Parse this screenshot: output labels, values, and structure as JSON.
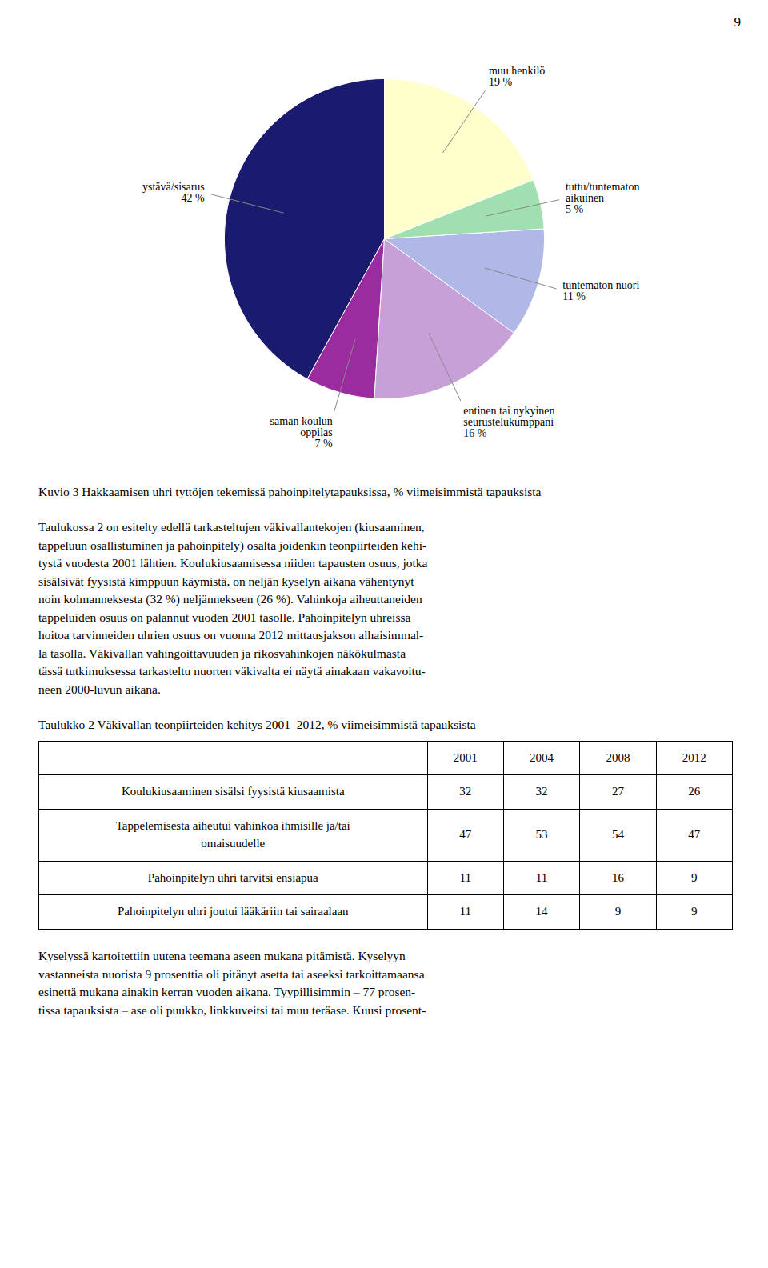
{
  "page_number": 9,
  "chart_data": {
    "type": "pie",
    "title": "Kuvio 3 Hakkaamisen uhri tyttöjen tekemissä pahoinpitelytapauksissa, % viimeisimmistä tapauksista",
    "categories": [
      "ystävä/sisarus",
      "saman koulun\noppilas",
      "entinen tai nykyinen\nseurustelukumppani",
      "tuntematon nuori",
      "tuttu/tuntematon\naikuinen",
      "muu henkilö"
    ],
    "values": [
      42,
      7,
      16,
      11,
      5,
      19
    ],
    "value_labels": [
      "42 %",
      "7 %",
      "16 %",
      "11 %",
      "5 %",
      "19 %"
    ],
    "data_labels": true,
    "colors": [
      "#1a1a6e",
      "#9b2ca0",
      "#c8a0d8",
      "#b0b8e8",
      "#a0e0b0",
      "#ffffcc"
    ]
  },
  "body_text_1": [
    "Taulukossa 2 on esitelty edellä tarkasteltujen väkivallantekojen (kiusaaminen,",
    "tappeluun osallistuminen ja pahoinpitely) osalta joidenkin teonpiirteiden kehi-",
    "tystä vuodesta 2001 lähtien. Koulukiusaamisessa niiden tapausten osuus, jotka",
    "sisälsivät fyysistä kimppuun käymistä, on neljän kyselyn aikana vähentynyt",
    "noin kolmanneksesta (32 %) neljännekseen (26 %). Vahinkoja aiheuttaneiden",
    "tappeluiden osuus on palannut vuoden 2001 tasolle. Pahoinpitelyn uhreissa",
    "hoitoa tarvinneiden uhrien osuus on vuonna 2012 mittausjakson alhaisimmal-",
    "la tasolla. Väkivallan vahingoittavuuden ja rikosvahinkojen näkökulmasta",
    "tässä tutkimuksessa tarkasteltu nuorten väkivalta ei näytä ainakaan vakavoitu-",
    "neen 2000-luvun aikana."
  ],
  "table": {
    "title": "Taulukko 2 Väkivallan teonpiirteiden kehitys 2001–2012, % viimeisimmistä tapauksista",
    "columns": [
      "2001",
      "2004",
      "2008",
      "2012"
    ],
    "rows": [
      {
        "label": "Koulukiusaaminen sisälsi fyysistä kiusaamista",
        "values": [
          32,
          32,
          27,
          26
        ]
      },
      {
        "label": "Tappelemisesta aiheutui vahinkoa ihmisille ja/tai\nomaisuudelle",
        "values": [
          47,
          53,
          54,
          47
        ]
      },
      {
        "label": "Pahoinpitelyn uhri tarvitsi ensiapua",
        "values": [
          11,
          11,
          16,
          9
        ]
      },
      {
        "label": "Pahoinpitelyn uhri joutui lääkäriin tai sairaalaan",
        "values": [
          11,
          14,
          9,
          9
        ]
      }
    ]
  },
  "body_text_2": [
    "Kyselyssä kartoitettiin uutena teemana aseen mukana pitämistä. Kyselyyn",
    "vastanneista nuorista 9 prosenttia oli pitänyt asetta tai aseeksi tarkoittamaansa",
    "esinettä mukana ainakin kerran vuoden aikana. Tyypillisimmin – 77 prosen-",
    "tissa tapauksista – ase oli puukko, linkkuveitsi tai muu teräase. Kuusi prosent-"
  ]
}
